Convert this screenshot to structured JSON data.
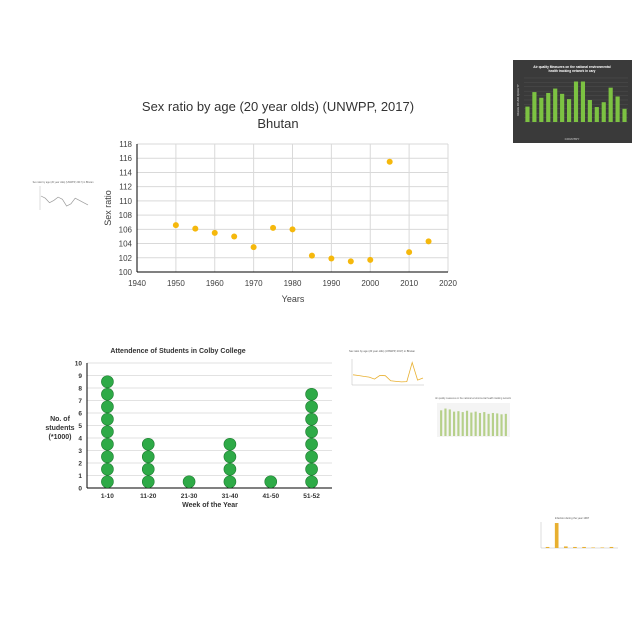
{
  "colors": {
    "scatter_point": "#f5b80c",
    "dot_fill": "#2eaa47",
    "dot_stroke": "#1d7a30",
    "grid": "#d9d9d9",
    "axis": "#000000",
    "dark_panel": "#3a3a3a",
    "bar_green": "#7cc242",
    "thumb_orange": "#e8b030",
    "thumb_line": "#9a9a9a",
    "thumb_bar": "#b6d08a"
  },
  "chart_data": [
    {
      "type": "scatter",
      "title": "Sex ratio by age (20 year olds) (UNWPP, 2017)",
      "subtitle": "Bhutan",
      "xlabel": "Years",
      "ylabel": "Sex ratio",
      "xlim": [
        1940,
        2020
      ],
      "ylim": [
        100,
        118
      ],
      "xticks": [
        1940,
        1950,
        1960,
        1970,
        1980,
        1990,
        2000,
        2010,
        2020
      ],
      "yticks": [
        100,
        102,
        104,
        106,
        108,
        110,
        112,
        114,
        116,
        118
      ],
      "grid": true,
      "points": [
        {
          "x": 1950,
          "y": 106.6
        },
        {
          "x": 1955,
          "y": 106.1
        },
        {
          "x": 1960,
          "y": 105.5
        },
        {
          "x": 1965,
          "y": 105.0
        },
        {
          "x": 1970,
          "y": 103.5
        },
        {
          "x": 1975,
          "y": 106.2
        },
        {
          "x": 1980,
          "y": 106.0
        },
        {
          "x": 1985,
          "y": 102.3
        },
        {
          "x": 1990,
          "y": 101.9
        },
        {
          "x": 1995,
          "y": 101.5
        },
        {
          "x": 2000,
          "y": 101.7
        },
        {
          "x": 2005,
          "y": 115.5
        },
        {
          "x": 2010,
          "y": 102.8
        },
        {
          "x": 2015,
          "y": 104.3
        }
      ]
    },
    {
      "type": "dot",
      "title": "Attendence of Students in Colby College",
      "xlabel": "Week of the Year",
      "ylabel": "No. of students (*1000)",
      "ylabel_lines": [
        "No. of",
        "students",
        "(*1000)"
      ],
      "ylim": [
        0,
        10
      ],
      "yticks": [
        0,
        1,
        2,
        3,
        4,
        5,
        6,
        7,
        8,
        9,
        10
      ],
      "categories": [
        "1-10",
        "11-20",
        "21-30",
        "31-40",
        "41-50",
        "51-52"
      ],
      "values": [
        9,
        4,
        1,
        4,
        1,
        8
      ],
      "grid": true
    },
    {
      "type": "bar",
      "title": "Air quality Measures on the national environmental health tracking network in cary",
      "title_lines": [
        "Air quality Measures on the national environmental",
        "health tracking network in cary"
      ],
      "xlabel": "COUNTRY",
      "ylabel": "VALUE OF AIR QUALITY",
      "ylim": [
        0,
        100
      ],
      "values": [
        35,
        68,
        55,
        66,
        76,
        64,
        52,
        92,
        92,
        50,
        34,
        45,
        78,
        58,
        30
      ]
    },
    {
      "type": "line",
      "title": "Sex ratio by age (20 year olds) (UNWPP, 2017) in Bhutan",
      "values": [
        64,
        62,
        58,
        60,
        63,
        61,
        55,
        57,
        62,
        60,
        58,
        56
      ]
    },
    {
      "type": "line",
      "title": "Sex ratio by age (20 year olds) (UNWPP, 2017) in Bhutan",
      "values": [
        106.6,
        106.1,
        105.5,
        105.0,
        103.5,
        106.2,
        106.0,
        102.3,
        101.9,
        101.5,
        101.7,
        115.5,
        102.8,
        104.3
      ]
    },
    {
      "type": "bar",
      "title": "Air quality measures on the national environmental health tracking network",
      "values": [
        58,
        62,
        60,
        55,
        56,
        54,
        57,
        53,
        55,
        52,
        54,
        50,
        52,
        51,
        49,
        50
      ]
    },
    {
      "type": "bar",
      "title": "Infection during the year 1997",
      "values": [
        2,
        48,
        3,
        2,
        2,
        1,
        1,
        2
      ]
    }
  ]
}
